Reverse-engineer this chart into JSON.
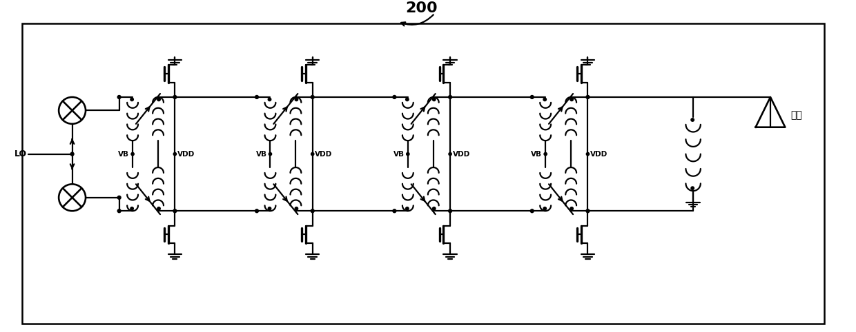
{
  "title": "200",
  "label_LO": "LO",
  "label_VB": "VB",
  "label_VDD": "VDD",
  "label_antenna": "天线",
  "bg_color": "#ffffff",
  "line_color": "#000000",
  "linewidth": 1.6,
  "fig_width": 12.4,
  "fig_height": 4.82,
  "dpi": 100
}
